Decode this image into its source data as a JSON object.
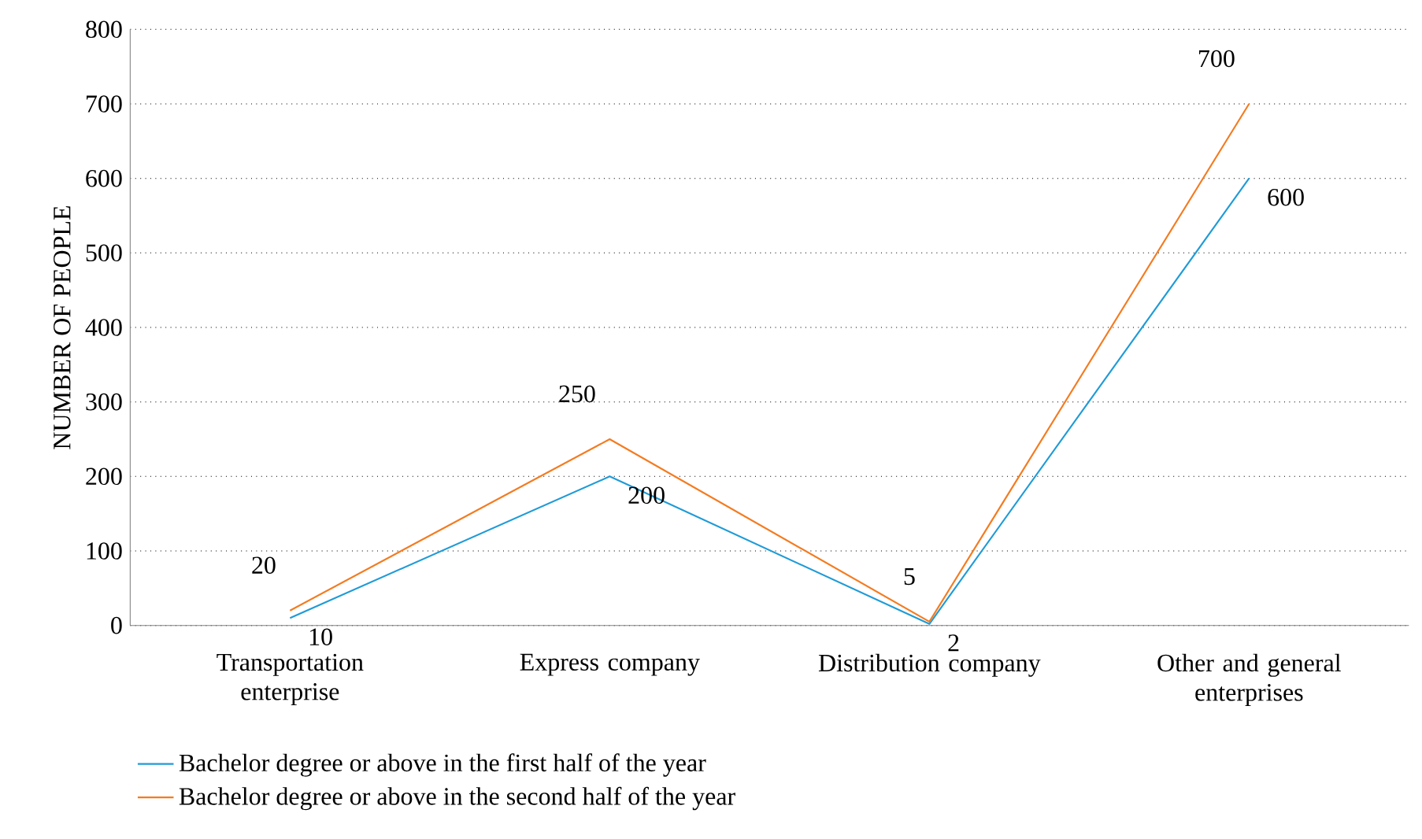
{
  "chart_data": {
    "type": "line",
    "categories": [
      "Transportation enterprise",
      "Express company",
      "Distribution company",
      "Other and general enterprises"
    ],
    "ylabel": "NUMBER OF PEOPLE",
    "ylim": [
      0,
      800
    ],
    "yticks": [
      0,
      100,
      200,
      300,
      400,
      500,
      600,
      700,
      800
    ],
    "grid": "y",
    "legend": "bottom",
    "marker": "none",
    "data_labels": true,
    "series": [
      {
        "name": "Bachelor degree or above in the first half of the year",
        "color": "#1f9bd7",
        "values": [
          10,
          200,
          2,
          600
        ]
      },
      {
        "name": "Bachelor degree or above in the second half of the year",
        "color": "#f47b20",
        "values": [
          20,
          250,
          5,
          700
        ]
      }
    ]
  }
}
